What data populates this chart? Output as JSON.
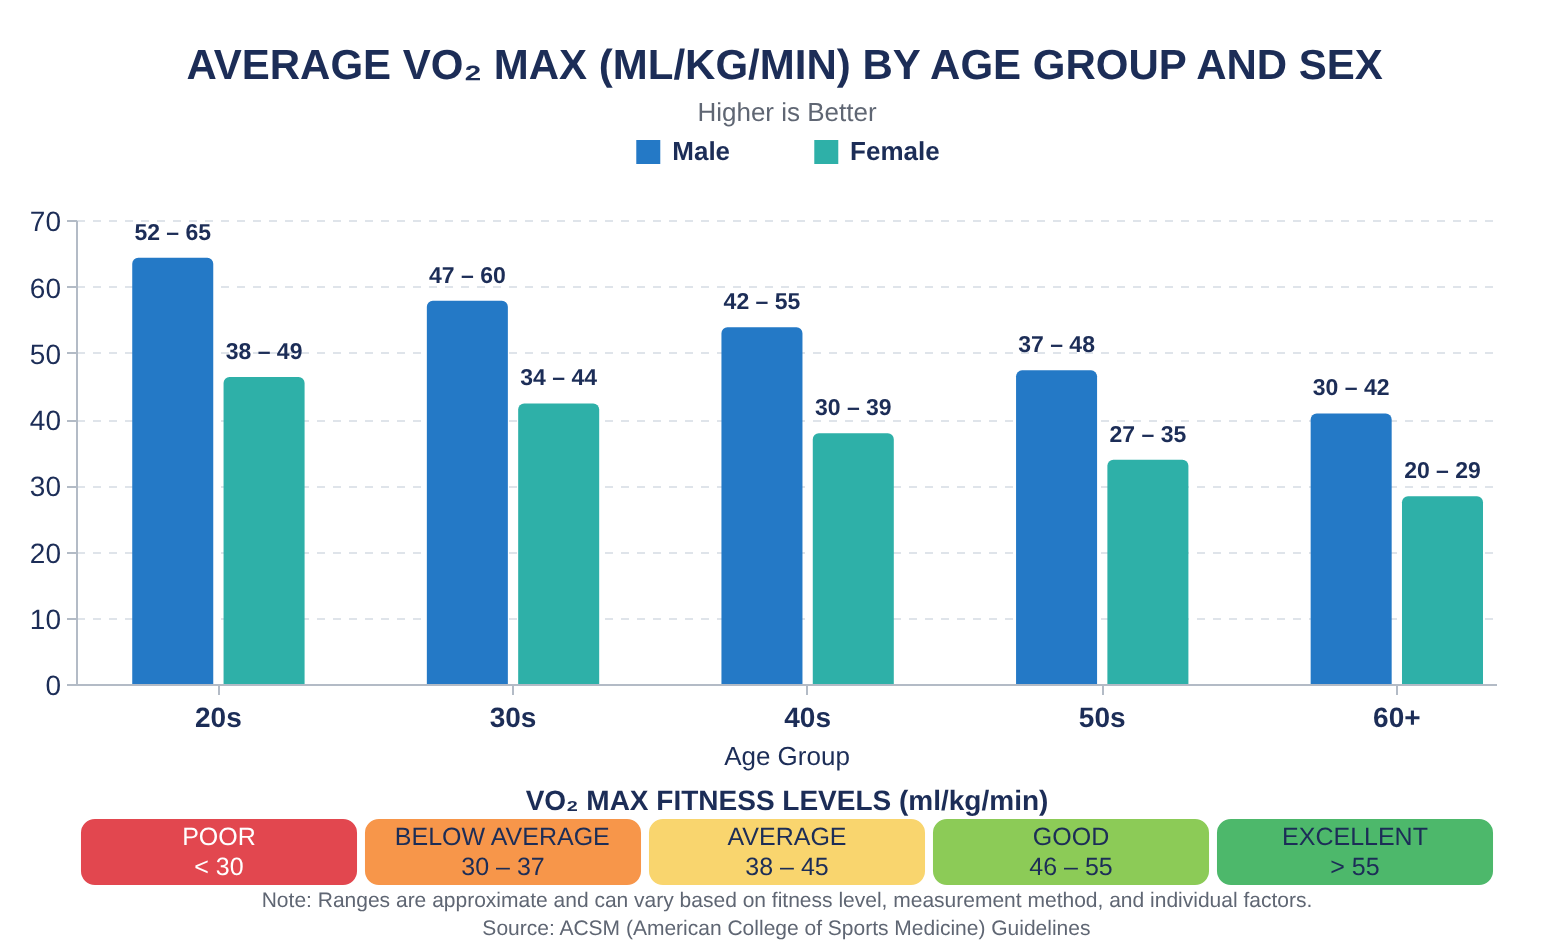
{
  "chart_data": [
    {
      "type": "bar",
      "title": "AVERAGE VO₂ MAX (ML/KG/MIN) BY AGE GROUP AND SEX",
      "subtitle": "Higher is Better",
      "xlabel": "Age Group",
      "categories": [
        "20s",
        "30s",
        "40s",
        "50s",
        "60+"
      ],
      "series": [
        {
          "name": "Male",
          "color": "#2479c6",
          "values": [
            64.5,
            58,
            54,
            47.5,
            41
          ]
        },
        {
          "name": "Female",
          "color": "#2eb0a8",
          "values": [
            46.5,
            42.5,
            38,
            34,
            28.5
          ]
        }
      ],
      "annotations": [
        {
          "text": "52 – 65",
          "x": "20s",
          "y": 64.5
        },
        {
          "text": "47 – 60",
          "x": "30s",
          "y": 58
        },
        {
          "text": "42 – 55",
          "x": "40s",
          "y": 54
        },
        {
          "text": "37 – 48",
          "x": "50s",
          "y": 47.5
        },
        {
          "text": "30 – 42",
          "x": "60+",
          "y": 41
        },
        {
          "text": "38 – 49",
          "x": "20s",
          "y": 46.5
        },
        {
          "text": "34 – 44",
          "x": "30s",
          "y": 42.5
        },
        {
          "text": "30 – 39",
          "x": "40s",
          "y": 38
        },
        {
          "text": "27 – 35",
          "x": "50s",
          "y": 34
        },
        {
          "text": "20 – 29",
          "x": "60+",
          "y": 28.5
        }
      ],
      "ylim": [
        0,
        70
      ],
      "yticks": [
        0,
        10,
        20,
        30,
        40,
        50,
        60,
        70
      ],
      "grid": "y",
      "legend": "top"
    },
    {
      "type": "other",
      "title": "VO₂ MAX FITNESS LEVELS (ml/kg/min)",
      "categories": [
        "POOR",
        "BELOW AVERAGE",
        "AVERAGE",
        "GOOD",
        "EXCELLENT"
      ],
      "value_labels": [
        "< 30",
        "30 – 37",
        "38 – 45",
        "46 – 55",
        "> 55"
      ],
      "colors": [
        "#e2474f",
        "#f7964a",
        "#f9d56e",
        "#8ccb57",
        "#4db86b"
      ],
      "annotations": [
        "Note: Ranges are approximate and can vary based on fitness level, measurement method, and individual factors.",
        "Source: ACSM (American College of Sports Medicine) Guidelines"
      ]
    }
  ]
}
